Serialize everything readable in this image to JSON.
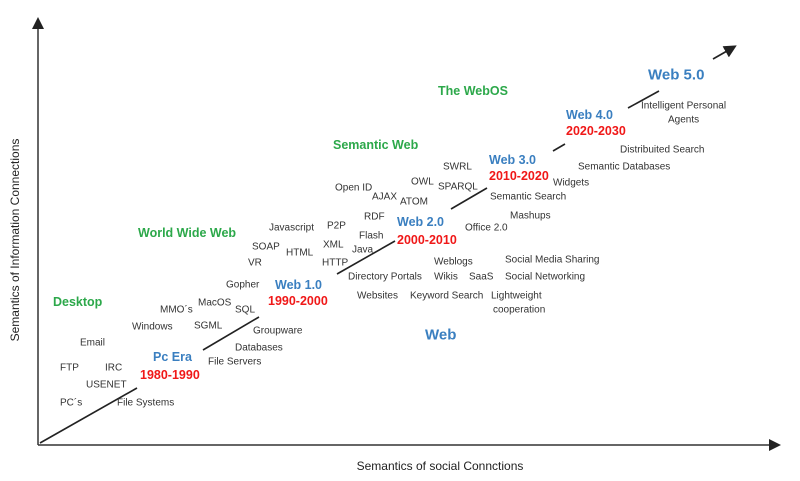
{
  "axes": {
    "x_label": "Semantics of social Connctions",
    "y_label": "Semantics of Information Connections"
  },
  "eras": [
    "Desktop",
    "World Wide Web",
    "Semantic Web",
    "The WebOS",
    "Web"
  ],
  "stages": [
    {
      "name": "Pc Era",
      "years": "1980-1990"
    },
    {
      "name": "Web 1.0",
      "years": "1990-2000"
    },
    {
      "name": "Web 2.0",
      "years": "2000-2010"
    },
    {
      "name": "Web 3.0",
      "years": "2010-2020"
    },
    {
      "name": "Web 4.0",
      "years": "2020-2030"
    },
    {
      "name": "Web 5.0"
    }
  ],
  "terms": [
    "Email",
    "FTP",
    "IRC",
    "USENET",
    "PC´s",
    "File Systems",
    "Windows",
    "MMO´s",
    "MacOS",
    "SGML",
    "SQL",
    "Gopher",
    "Groupware",
    "Databases",
    "File Servers",
    "VR",
    "SOAP",
    "HTML",
    "Javascript",
    "P2P",
    "XML",
    "HTTP",
    "Java",
    "Flash",
    "RDF",
    "Open ID",
    "AJAX",
    "ATOM",
    "OWL",
    "SWRL",
    "SPARQL",
    "Directory Portals",
    "Websites",
    "Keyword Search",
    "Weblogs",
    "Wikis",
    "SaaS",
    "Lightweight",
    "cooperation",
    "Office 2.0",
    "Mashups",
    "Semantic Search",
    "Widgets",
    "Semantic Databases",
    "Distribuited Search",
    "Intelligent Personal",
    "Agents",
    "Social Media Sharing",
    "Social Networking"
  ],
  "colors": {
    "era": "#2ca84a",
    "version": "#3a7fc0",
    "years": "#f01818",
    "text": "#333333"
  }
}
